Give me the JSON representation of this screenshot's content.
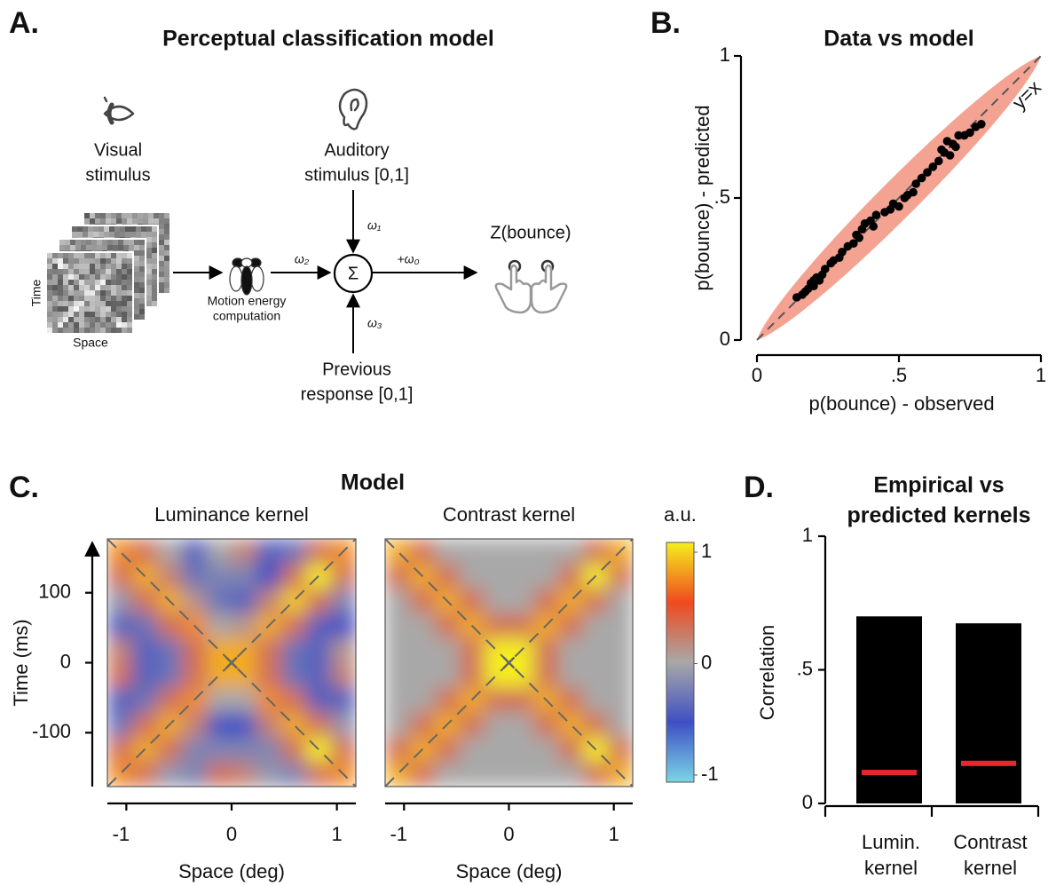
{
  "diagram": {
    "label": "A.",
    "title": "Perceptual classification model",
    "visual": [
      "Visual",
      "stimulus"
    ],
    "stimulus_axes": {
      "time": "Time",
      "space": "Space"
    },
    "motion_energy": [
      "Motion energy",
      "computation"
    ],
    "auditory": [
      "Auditory",
      "stimulus [0,1]"
    ],
    "previous": [
      "Previous",
      "response [0,1]"
    ],
    "sum": "Σ",
    "weights": {
      "visual": "ω₂",
      "auditory": "ω₁",
      "previous": "ω₃",
      "bias": "+ω₀"
    },
    "output": "Z(bounce)"
  },
  "chart_data": [
    {
      "type": "scatter",
      "panel": "B.",
      "title": "Data vs model",
      "xlabel": "p(bounce) - observed",
      "ylabel": "p(bounce) - predicted",
      "annotation": "y=x",
      "color": "#000000",
      "band_color": "#f4a393",
      "xlim": [
        0,
        1
      ],
      "ylim": [
        0,
        1
      ],
      "xticks": [
        0,
        {
          "value": 0.5,
          "label": ".5"
        },
        1
      ],
      "yticks": [
        0,
        {
          "value": 0.5,
          "label": ".5"
        },
        1
      ],
      "x": [
        0.14,
        0.16,
        0.17,
        0.18,
        0.19,
        0.2,
        0.2,
        0.21,
        0.22,
        0.23,
        0.24,
        0.26,
        0.27,
        0.29,
        0.3,
        0.32,
        0.34,
        0.35,
        0.36,
        0.37,
        0.38,
        0.4,
        0.41,
        0.42,
        0.45,
        0.47,
        0.48,
        0.5,
        0.52,
        0.53,
        0.55,
        0.56,
        0.58,
        0.6,
        0.62,
        0.64,
        0.65,
        0.66,
        0.67,
        0.68,
        0.69,
        0.7,
        0.71,
        0.73,
        0.75,
        0.77,
        0.79
      ],
      "y": [
        0.15,
        0.16,
        0.17,
        0.18,
        0.2,
        0.19,
        0.21,
        0.22,
        0.21,
        0.23,
        0.25,
        0.27,
        0.28,
        0.29,
        0.31,
        0.33,
        0.34,
        0.37,
        0.36,
        0.39,
        0.41,
        0.42,
        0.4,
        0.44,
        0.45,
        0.46,
        0.48,
        0.47,
        0.5,
        0.51,
        0.52,
        0.55,
        0.57,
        0.59,
        0.61,
        0.63,
        0.67,
        0.66,
        0.7,
        0.65,
        0.69,
        0.68,
        0.72,
        0.72,
        0.73,
        0.75,
        0.76
      ]
    },
    {
      "type": "heatmap",
      "panel": "C.",
      "supertitle": "Model",
      "title": "Luminance kernel",
      "xlabel": "Space (deg)",
      "ylabel": "Time (ms)",
      "xlim": [
        -1.18,
        1.18
      ],
      "ylim": [
        -177,
        177
      ],
      "xticks": [
        -1,
        0,
        1
      ],
      "yticks": [
        -100,
        0,
        100
      ],
      "clim": [
        -1,
        1
      ],
      "colormap": [
        "#7ad6e6",
        "#3f4fc4",
        "#a8a8a8",
        "#f04a1e",
        "#f5ee1e"
      ],
      "z": [
        [
          0.7,
          0.3,
          0.0,
          -0.4,
          0.0,
          0.2,
          -0.4,
          -0.3,
          0.3,
          0.7
        ],
        [
          0.3,
          0.8,
          0.2,
          -0.3,
          -0.2,
          -0.2,
          -0.5,
          0.3,
          1.0,
          0.3
        ],
        [
          -0.1,
          0.3,
          0.8,
          0.1,
          -0.3,
          -0.4,
          0.2,
          0.9,
          0.3,
          -0.2
        ],
        [
          -0.4,
          -0.3,
          0.3,
          0.7,
          0.0,
          0.1,
          0.8,
          0.3,
          -0.4,
          -0.5
        ],
        [
          0.2,
          -0.4,
          -0.3,
          0.3,
          0.8,
          0.8,
          0.3,
          -0.3,
          -0.4,
          0.1
        ],
        [
          0.3,
          -0.4,
          -0.3,
          0.3,
          0.8,
          0.8,
          0.3,
          -0.3,
          -0.4,
          0.2
        ],
        [
          -0.4,
          -0.3,
          0.3,
          0.7,
          0.0,
          0.0,
          0.7,
          0.3,
          -0.4,
          -0.4
        ],
        [
          -0.3,
          0.3,
          0.8,
          0.2,
          -0.5,
          -0.5,
          0.2,
          0.8,
          0.3,
          -0.1
        ],
        [
          0.3,
          0.8,
          0.3,
          -0.2,
          -0.2,
          -0.2,
          -0.2,
          0.3,
          1.0,
          0.3
        ],
        [
          0.7,
          0.3,
          -0.1,
          -0.2,
          0.3,
          0.2,
          -0.1,
          -0.2,
          0.3,
          0.7
        ]
      ]
    },
    {
      "type": "heatmap",
      "title": "Contrast kernel",
      "xlabel": "Space (deg)",
      "xlim": [
        -1.18,
        1.18
      ],
      "ylim": [
        -177,
        177
      ],
      "xticks": [
        -1,
        0,
        1
      ],
      "clim": [
        -1,
        1
      ],
      "colormap": [
        "#7ad6e6",
        "#3f4fc4",
        "#a8a8a8",
        "#f04a1e",
        "#f5ee1e"
      ],
      "colorbar": {
        "label": "a.u.",
        "ticks": [
          1,
          0,
          -1
        ]
      },
      "z": [
        [
          0.8,
          0.3,
          0,
          0,
          0,
          0,
          0,
          0,
          0.3,
          0.8
        ],
        [
          0.3,
          0.8,
          0.3,
          0,
          0,
          0,
          0,
          0.3,
          1.0,
          0.3
        ],
        [
          0,
          0.3,
          0.8,
          0.3,
          0,
          0,
          0.3,
          0.8,
          0.3,
          0
        ],
        [
          0,
          0,
          0.3,
          0.8,
          0.3,
          0.3,
          0.8,
          0.3,
          0,
          0
        ],
        [
          0,
          0,
          0,
          0.3,
          1.0,
          1.0,
          0.3,
          0,
          0,
          0
        ],
        [
          0,
          0,
          0,
          0.3,
          1.0,
          1.0,
          0.3,
          0,
          0,
          0
        ],
        [
          0,
          0,
          0.3,
          0.8,
          0.3,
          0.3,
          0.8,
          0.3,
          0,
          0
        ],
        [
          0,
          0.3,
          0.8,
          0.3,
          0,
          0,
          0.3,
          0.8,
          0.3,
          0
        ],
        [
          0.3,
          0.8,
          0.3,
          0,
          0,
          0,
          0,
          0.3,
          1.0,
          0.3
        ],
        [
          0.8,
          0.3,
          0,
          0,
          0,
          0,
          0,
          0,
          0.3,
          0.8
        ]
      ]
    },
    {
      "type": "bar",
      "panel": "D.",
      "title": [
        "Empirical vs",
        "predicted kernels"
      ],
      "ylabel": "Correlation",
      "categories": [
        [
          "Lumin.",
          "kernel"
        ],
        [
          "Contrast",
          "kernel"
        ]
      ],
      "values": [
        0.7,
        0.674
      ],
      "color": "#000000",
      "reference": [
        0.116,
        0.15
      ],
      "reference_color": "#e8262d",
      "ylim": [
        0,
        1
      ],
      "yticks": [
        0,
        {
          "value": 0.5,
          "label": ".5"
        },
        1
      ]
    }
  ]
}
